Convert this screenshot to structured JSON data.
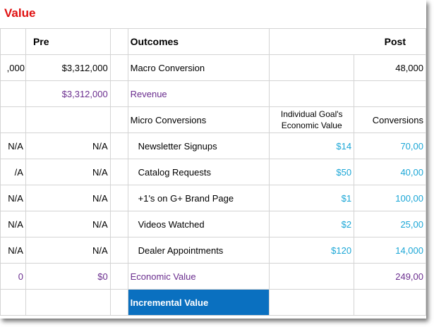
{
  "title": "Value",
  "headers": {
    "pre": "Pre",
    "outcomes": "Outcomes",
    "post": "Post",
    "individual_goal_value": "Individual Goal's Economic Value",
    "conversions": "Conversions"
  },
  "rows": {
    "macro": {
      "c0": ",000",
      "pre": "$3,312,000",
      "label": "Macro Conversion",
      "post": "48,000"
    },
    "revenue": {
      "pre": "$3,312,000",
      "label": "Revenue"
    },
    "micro_label": "Micro Conversions",
    "micro": [
      {
        "c0": "N/A",
        "pre": "N/A",
        "label": "Newsletter Signups",
        "value": "$14",
        "conversions": "70,00"
      },
      {
        "c0": "/A",
        "pre": "N/A",
        "label": "Catalog Requests",
        "value": "$50",
        "conversions": "40,00"
      },
      {
        "c0": "N/A",
        "pre": "N/A",
        "label": "+1's on G+ Brand Page",
        "value": "$1",
        "conversions": "100,00"
      },
      {
        "c0": "N/A",
        "pre": "N/A",
        "label": "Videos Watched",
        "value": "$2",
        "conversions": "25,00"
      },
      {
        "c0": "N/A",
        "pre": "N/A",
        "label": "Dealer Appointments",
        "value": "$120",
        "conversions": "14,000"
      }
    ],
    "economic": {
      "c0": "0",
      "pre": "$0",
      "label": "Economic Value",
      "post": "249,00"
    },
    "incremental_label": "Incremental Value"
  },
  "colors": {
    "title": "#e01010",
    "purple": "#6a2d8e",
    "teal": "#1aa6d6",
    "highlight": "#0a70c0"
  }
}
